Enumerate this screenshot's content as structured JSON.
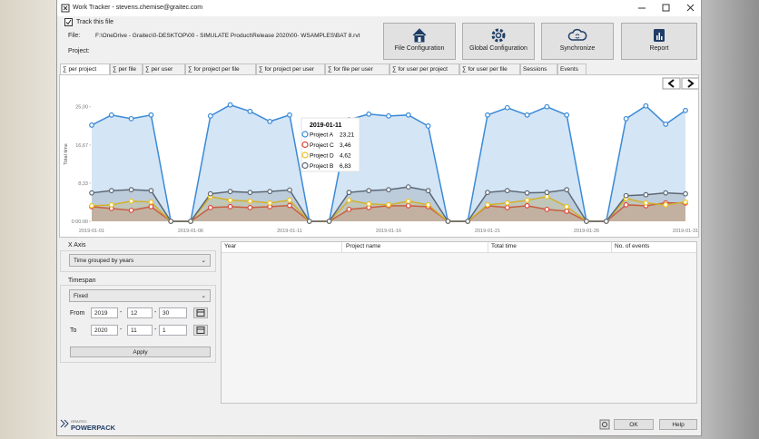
{
  "window": {
    "title": "Work Tracker - stevens.chemise@graitec.com",
    "track_this_file": "Track this file",
    "file_label": "File:",
    "file_path": "F:\\OneDrive - Graitec\\0-DESKTOP\\00 - SIMULATE Product\\Release 2020\\00- WSAMPLES\\BAT 8.rvt",
    "project_label": "Project:"
  },
  "toolbar": {
    "buttons": [
      "File Configuration",
      "Global Configuration",
      "Synchronize",
      "Report"
    ]
  },
  "tabs": [
    "∑ per project",
    "∑ per file",
    "∑ per user",
    "∑ for project per file",
    "∑ for project per user",
    "∑ for file per user",
    "∑ for user per project",
    "∑ for user per file",
    "Sessions",
    "Events"
  ],
  "chart_data": {
    "type": "area",
    "y_label": "Total time",
    "categories": [
      "2019-01-01",
      null,
      null,
      null,
      null,
      "2019-01-06",
      null,
      null,
      null,
      null,
      "2019-01-11",
      null,
      null,
      null,
      null,
      "2019-01-16",
      null,
      null,
      null,
      null,
      "2019-01-21",
      null,
      null,
      null,
      null,
      "2019-01-26",
      null,
      null,
      null,
      null,
      "2019-01-31"
    ],
    "ylim": [
      0,
      29.5
    ],
    "yticks": [
      {
        "value": 0,
        "label": "0:00:00"
      },
      {
        "value": 8.33,
        "label": "8,33"
      },
      {
        "value": 16.67,
        "label": "16,67"
      },
      {
        "value": 25,
        "label": "25,00"
      }
    ],
    "series": [
      {
        "name": "Project A",
        "color": "#3b8ad6",
        "values": [
          21,
          23.2,
          22.4,
          23.2,
          0,
          0,
          23,
          25.4,
          24,
          21.8,
          23.21,
          0,
          0,
          22.2,
          23.4,
          23,
          23.2,
          20.8,
          0,
          0,
          23.2,
          24.8,
          23.2,
          25,
          23.2,
          0,
          0,
          22.4,
          25.2,
          21.2,
          24.2
        ],
        "value_labels": [
          null,
          null,
          null,
          null,
          null,
          null,
          null,
          null,
          null,
          null,
          "23,21",
          null,
          null,
          null,
          null,
          null,
          null,
          null,
          null,
          null,
          null,
          null,
          null,
          null,
          null,
          null,
          null,
          null,
          null,
          null,
          null
        ]
      },
      {
        "name": "Project C",
        "color": "#e0443c",
        "values": [
          3.2,
          2.8,
          2.4,
          3.2,
          0,
          0,
          3,
          3.2,
          3,
          3.2,
          3.46,
          0,
          0,
          2.6,
          3,
          3.4,
          3.4,
          3.2,
          0,
          0,
          3.4,
          3,
          3.4,
          2.6,
          2.2,
          0,
          0,
          3.6,
          3.4,
          4,
          4
        ],
        "value_labels": [
          null,
          null,
          null,
          null,
          null,
          null,
          null,
          null,
          null,
          null,
          "3,46",
          null,
          null,
          null,
          null,
          null,
          null,
          null,
          null,
          null,
          null,
          null,
          null,
          null,
          null,
          null,
          null,
          null,
          null,
          null,
          null
        ]
      },
      {
        "name": "Project D",
        "color": "#efc21c",
        "values": [
          3.4,
          3.6,
          4.4,
          4.2,
          0,
          0,
          5.4,
          4.6,
          4.4,
          4,
          4.62,
          0,
          0,
          4.6,
          3.8,
          3.6,
          4.4,
          3.6,
          0,
          0,
          3.6,
          4,
          4.6,
          5.4,
          3.2,
          0,
          0,
          5,
          4,
          3.6,
          4.2
        ],
        "value_labels": [
          null,
          null,
          null,
          null,
          null,
          null,
          null,
          null,
          null,
          null,
          "4,62",
          null,
          null,
          null,
          null,
          null,
          null,
          null,
          null,
          null,
          null,
          null,
          null,
          null,
          null,
          null,
          null,
          null,
          null,
          null,
          null
        ]
      },
      {
        "name": "Project B",
        "color": "#5d6875",
        "values": [
          6.2,
          6.7,
          6.9,
          6.7,
          0,
          0,
          6,
          6.5,
          6.3,
          6.5,
          6.83,
          0,
          0,
          6.3,
          6.7,
          6.9,
          7.5,
          6.7,
          0,
          0,
          6.3,
          6.7,
          6.2,
          6.3,
          6.9,
          0,
          0,
          5.6,
          5.8,
          6.2,
          6
        ],
        "value_labels": [
          null,
          null,
          null,
          null,
          null,
          null,
          null,
          null,
          null,
          null,
          "6,83",
          null,
          null,
          null,
          null,
          null,
          null,
          null,
          null,
          null,
          null,
          null,
          null,
          null,
          null,
          null,
          null,
          null,
          null,
          null,
          null
        ]
      }
    ]
  },
  "x_axis_panel": {
    "title": "X Axis",
    "selection": "Time grouped by years"
  },
  "timespan_panel": {
    "title": "Timespan",
    "mode": "Fixed",
    "from_label": "From",
    "from": [
      "2019",
      "12",
      "30"
    ],
    "to_label": "To",
    "to": [
      "2020",
      "11",
      "1"
    ],
    "separator": "-",
    "apply": "Apply"
  },
  "table": {
    "headers": [
      "Year",
      "Project name",
      "Total time",
      "No. of events"
    ]
  },
  "footer": {
    "brand_small": "GRAITEC",
    "brand": "POWERPACK",
    "ok": "OK",
    "help": "Help"
  }
}
